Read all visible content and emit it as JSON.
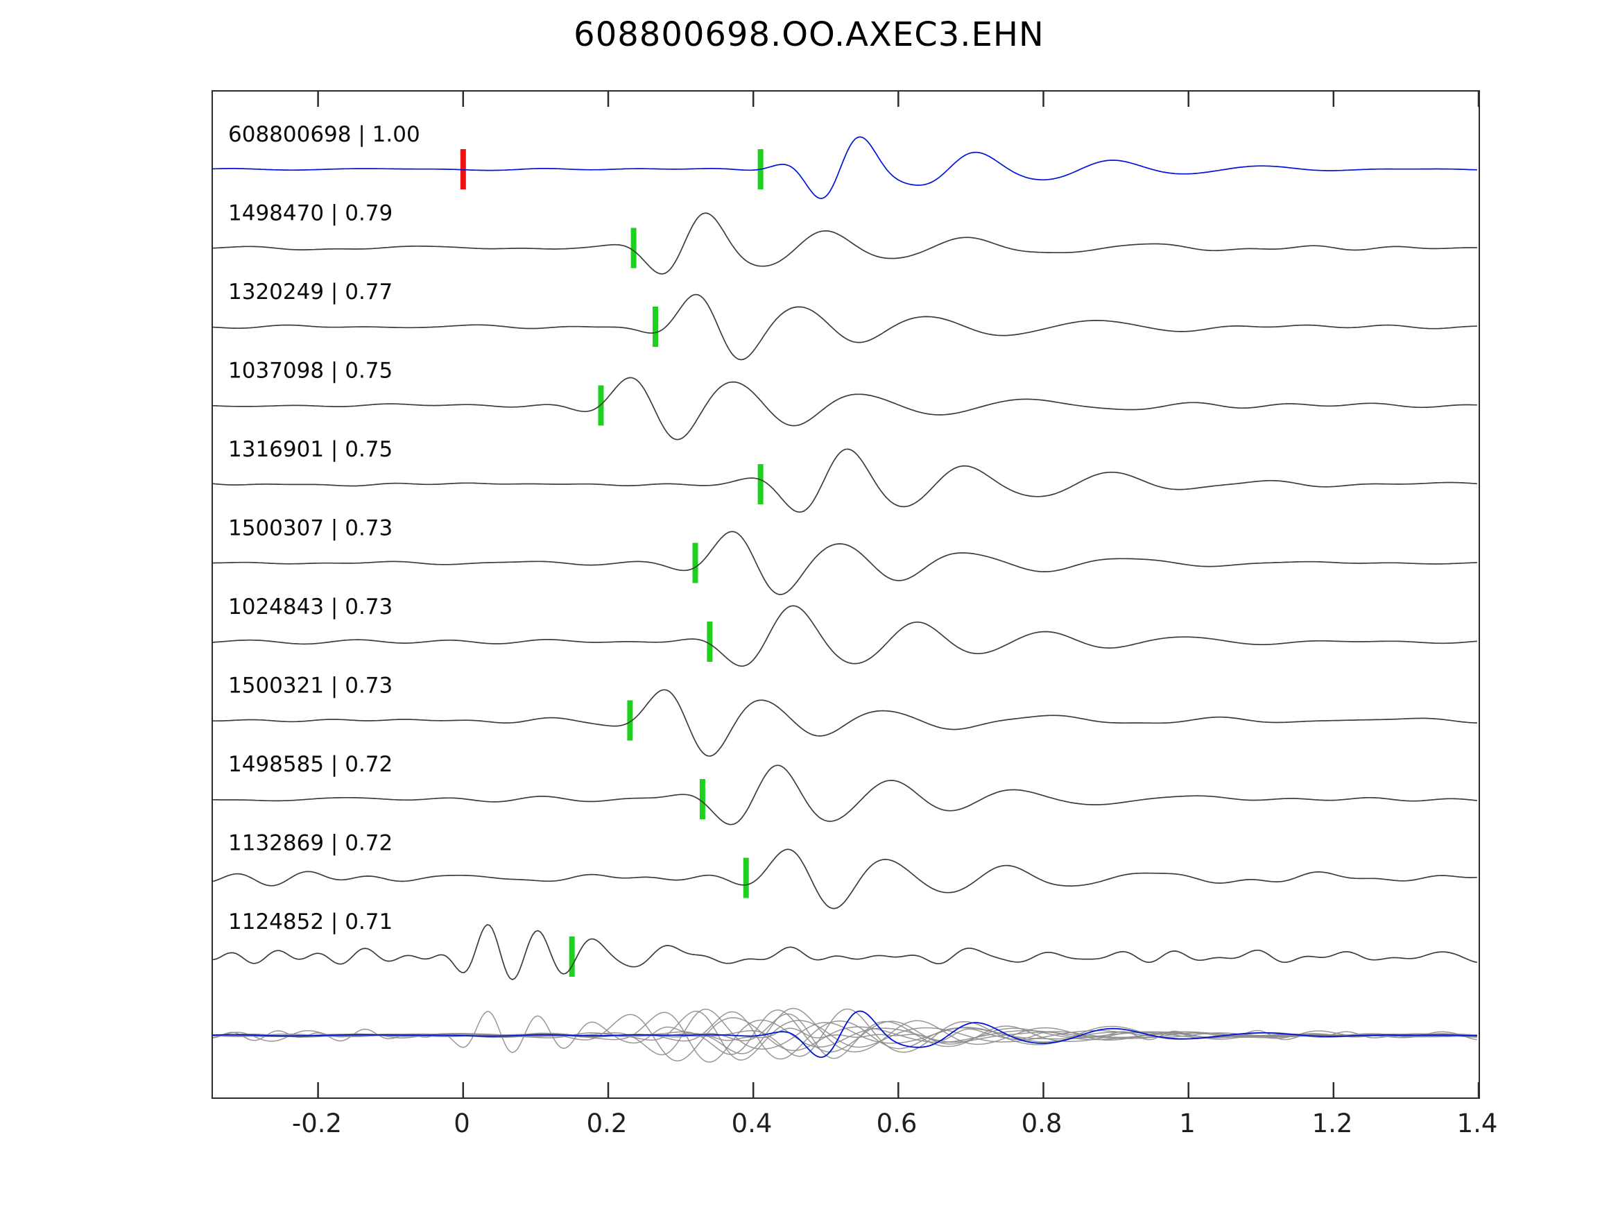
{
  "title": "608800698.OO.AXEC3.EHN",
  "chart_data": {
    "type": "line",
    "title": "608800698.OO.AXEC3.EHN",
    "xlabel": "",
    "ylabel": "",
    "grid": false,
    "legend": "none",
    "x_axis": {
      "min": -0.345,
      "max": 1.4,
      "ticks": [
        -0.2,
        0,
        0.2,
        0.4,
        0.6,
        0.8,
        1,
        1.2,
        1.4
      ],
      "tick_labels": [
        "-0.2",
        "0",
        "0.2",
        "0.4",
        "0.6",
        "0.8",
        "1",
        "1.2",
        "1.4"
      ]
    },
    "colors": {
      "reference": "#0013d8",
      "trace": "#3c3c3c",
      "stack_trace": "#8c8c8c",
      "pick": "#1fd11f",
      "reference_pick": "#ef1212",
      "axis": "#2b2b2b"
    },
    "traces": [
      {
        "id": "608800698",
        "correlation": "1.00",
        "label": "608800698 | 1.00",
        "role": "reference",
        "color_key": "reference",
        "picks": [
          {
            "t": 0.0,
            "color_key": "reference_pick"
          },
          {
            "t": 0.41,
            "color_key": "pick"
          }
        ],
        "synth": {
          "noise_amp": 0.025,
          "noise_fmin": 2,
          "noise_fmax": 9,
          "seed": 11,
          "phase": 0.0,
          "wavelets": [
            [
              0.52,
              8,
              0.065,
              1.0
            ],
            [
              0.67,
              6,
              0.09,
              0.5
            ],
            [
              0.85,
              5,
              0.11,
              0.25
            ],
            [
              1.05,
              4.5,
              0.13,
              0.1
            ]
          ]
        }
      },
      {
        "id": "1498470",
        "correlation": "0.79",
        "label": "1498470 | 0.79",
        "role": "match",
        "color_key": "trace",
        "picks": [
          {
            "t": 0.235,
            "color_key": "pick"
          }
        ],
        "synth": {
          "noise_amp": 0.05,
          "noise_fmin": 2,
          "noise_fmax": 11,
          "seed": 12,
          "phase": 0.3,
          "wavelets": [
            [
              0.31,
              7,
              0.07,
              1.0
            ],
            [
              0.47,
              5.5,
              0.1,
              0.5
            ],
            [
              0.65,
              4.5,
              0.13,
              0.25
            ],
            [
              0.9,
              4,
              0.18,
              0.1
            ]
          ]
        }
      },
      {
        "id": "1320249",
        "correlation": "0.77",
        "label": "1320249 | 0.77",
        "role": "match",
        "color_key": "trace",
        "picks": [
          {
            "t": 0.265,
            "color_key": "pick"
          }
        ],
        "synth": {
          "noise_amp": 0.05,
          "noise_fmin": 2,
          "noise_fmax": 11,
          "seed": 13,
          "phase": 2.8,
          "wavelets": [
            [
              0.345,
              7,
              0.075,
              1.0
            ],
            [
              0.5,
              5.5,
              0.1,
              0.5
            ],
            [
              0.68,
              4.5,
              0.13,
              0.22
            ],
            [
              0.92,
              4,
              0.18,
              0.1
            ]
          ]
        }
      },
      {
        "id": "1037098",
        "correlation": "0.75",
        "label": "1037098 | 0.75",
        "role": "match",
        "color_key": "trace",
        "picks": [
          {
            "t": 0.19,
            "color_key": "pick"
          }
        ],
        "synth": {
          "noise_amp": 0.06,
          "noise_fmin": 2,
          "noise_fmax": 10,
          "seed": 14,
          "phase": 3.3,
          "wavelets": [
            [
              0.265,
              6.5,
              0.08,
              1.0
            ],
            [
              0.42,
              5.5,
              0.1,
              0.55
            ],
            [
              0.62,
              4.5,
              0.13,
              0.28
            ],
            [
              0.85,
              4,
              0.18,
              0.12
            ]
          ]
        }
      },
      {
        "id": "1316901",
        "correlation": "0.75",
        "label": "1316901 | 0.75",
        "role": "match",
        "color_key": "trace",
        "picks": [
          {
            "t": 0.41,
            "color_key": "pick"
          }
        ],
        "synth": {
          "noise_amp": 0.05,
          "noise_fmin": 2,
          "noise_fmax": 11,
          "seed": 15,
          "phase": 0.2,
          "wavelets": [
            [
              0.5,
              6.5,
              0.08,
              1.0
            ],
            [
              0.66,
              5.5,
              0.1,
              0.55
            ],
            [
              0.85,
              4.5,
              0.12,
              0.3
            ],
            [
              1.05,
              4,
              0.15,
              0.12
            ]
          ]
        }
      },
      {
        "id": "1500307",
        "correlation": "0.73",
        "label": "1500307 | 0.73",
        "role": "match",
        "color_key": "trace",
        "picks": [
          {
            "t": 0.32,
            "color_key": "pick"
          }
        ],
        "synth": {
          "noise_amp": 0.045,
          "noise_fmin": 2,
          "noise_fmax": 10,
          "seed": 16,
          "phase": 3.0,
          "wavelets": [
            [
              0.4,
              6.5,
              0.08,
              1.0
            ],
            [
              0.56,
              5.5,
              0.1,
              0.5
            ],
            [
              0.75,
              4.5,
              0.13,
              0.22
            ],
            [
              0.98,
              4,
              0.17,
              0.1
            ]
          ]
        }
      },
      {
        "id": "1024843",
        "correlation": "0.73",
        "label": "1024843 | 0.73",
        "role": "match",
        "color_key": "trace",
        "picks": [
          {
            "t": 0.34,
            "color_key": "pick"
          }
        ],
        "synth": {
          "noise_amp": 0.05,
          "noise_fmin": 2,
          "noise_fmax": 10,
          "seed": 17,
          "phase": 0.5,
          "wavelets": [
            [
              0.43,
              6,
              0.085,
              1.0
            ],
            [
              0.6,
              5.5,
              0.1,
              0.55
            ],
            [
              0.78,
              4.5,
              0.12,
              0.3
            ],
            [
              0.95,
              4,
              0.16,
              0.12
            ]
          ]
        }
      },
      {
        "id": "1500321",
        "correlation": "0.73",
        "label": "1500321 | 0.73",
        "role": "match",
        "color_key": "trace",
        "picks": [
          {
            "t": 0.23,
            "color_key": "pick"
          }
        ],
        "synth": {
          "noise_amp": 0.05,
          "noise_fmin": 2,
          "noise_fmax": 11,
          "seed": 18,
          "phase": 3.2,
          "wavelets": [
            [
              0.31,
              7,
              0.075,
              1.0
            ],
            [
              0.46,
              5.5,
              0.1,
              0.5
            ],
            [
              0.63,
              4.5,
              0.13,
              0.22
            ],
            [
              0.88,
              4,
              0.18,
              0.1
            ]
          ]
        }
      },
      {
        "id": "1498585",
        "correlation": "0.72",
        "label": "1498585 | 0.72",
        "role": "match",
        "color_key": "trace",
        "picks": [
          {
            "t": 0.33,
            "color_key": "pick"
          }
        ],
        "synth": {
          "noise_amp": 0.05,
          "noise_fmin": 2,
          "noise_fmax": 10,
          "seed": 19,
          "phase": 0.4,
          "wavelets": [
            [
              0.41,
              6.5,
              0.08,
              1.0
            ],
            [
              0.56,
              5.5,
              0.1,
              0.5
            ],
            [
              0.73,
              4.5,
              0.13,
              0.22
            ],
            [
              0.95,
              4,
              0.17,
              0.1
            ]
          ]
        }
      },
      {
        "id": "1132869",
        "correlation": "0.72",
        "label": "1132869 | 0.72",
        "role": "match",
        "color_key": "trace",
        "picks": [
          {
            "t": 0.39,
            "color_key": "pick"
          }
        ],
        "synth": {
          "noise_amp": 0.095,
          "noise_fmin": 3,
          "noise_fmax": 13,
          "seed": 20,
          "phase": 3.1,
          "wavelets": [
            [
              0.48,
              6.5,
              0.075,
              1.0
            ],
            [
              0.63,
              5.5,
              0.1,
              0.5
            ],
            [
              0.8,
              4.5,
              0.12,
              0.25
            ],
            [
              1.0,
              4,
              0.16,
              0.1
            ]
          ]
        }
      },
      {
        "id": "1124852",
        "correlation": "0.71",
        "label": "1124852 | 0.71",
        "role": "match",
        "color_key": "trace",
        "picks": [
          {
            "t": 0.15,
            "color_key": "pick"
          }
        ],
        "synth": {
          "noise_amp": 0.14,
          "noise_fmin": 6,
          "noise_fmax": 18,
          "seed": 21,
          "phase": 1.2,
          "wavelets": [
            [
              0.03,
              11,
              0.045,
              0.95
            ],
            [
              0.1,
              10,
              0.05,
              0.65
            ],
            [
              0.175,
              9,
              0.05,
              0.5
            ],
            [
              0.28,
              8,
              0.07,
              0.3
            ],
            [
              0.45,
              7,
              0.1,
              0.18
            ],
            [
              0.7,
              7,
              0.12,
              0.12
            ]
          ]
        }
      }
    ],
    "stack": {
      "description": "all traces overlaid at bottom row, reference in blue",
      "amp_scale": 0.75
    }
  }
}
